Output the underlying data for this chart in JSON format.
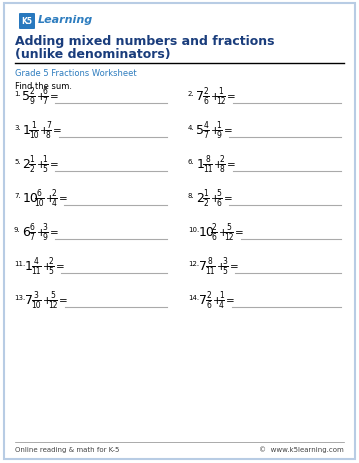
{
  "title_line1": "Adding mixed numbers and fractions",
  "title_line2": "(unlike denominators)",
  "subtitle": "Grade 5 Fractions Worksheet",
  "instruction": "Find the sum.",
  "title_color": "#1a3d7c",
  "subtitle_color": "#2e7dbf",
  "border_color": "#b8cce4",
  "background": "#ffffff",
  "footer_left": "Online reading & math for K-5",
  "footer_right": "©  www.k5learning.com",
  "problems": [
    {
      "num": "1.",
      "whole": "5",
      "n1": "2",
      "d1": "9",
      "n2": "6",
      "d2": "7"
    },
    {
      "num": "2.",
      "whole": "7",
      "n1": "2",
      "d1": "6",
      "n2": "1",
      "d2": "12"
    },
    {
      "num": "3.",
      "whole": "1",
      "n1": "1",
      "d1": "10",
      "n2": "7",
      "d2": "8"
    },
    {
      "num": "4.",
      "whole": "5",
      "n1": "4",
      "d1": "7",
      "n2": "1",
      "d2": "9"
    },
    {
      "num": "5.",
      "whole": "2",
      "n1": "1",
      "d1": "2",
      "n2": "1",
      "d2": "5"
    },
    {
      "num": "6.",
      "whole": "1",
      "n1": "8",
      "d1": "11",
      "n2": "2",
      "d2": "8"
    },
    {
      "num": "7.",
      "whole": "10",
      "n1": "6",
      "d1": "10",
      "n2": "2",
      "d2": "4"
    },
    {
      "num": "8.",
      "whole": "2",
      "n1": "1",
      "d1": "2",
      "n2": "5",
      "d2": "6"
    },
    {
      "num": "9.",
      "whole": "6",
      "n1": "6",
      "d1": "7",
      "n2": "3",
      "d2": "9"
    },
    {
      "num": "10.",
      "whole": "10",
      "n1": "2",
      "d1": "6",
      "n2": "5",
      "d2": "12"
    },
    {
      "num": "11.",
      "whole": "1",
      "n1": "4",
      "d1": "11",
      "n2": "2",
      "d2": "5"
    },
    {
      "num": "12.",
      "whole": "7",
      "n1": "8",
      "d1": "11",
      "n2": "3",
      "d2": "5"
    },
    {
      "num": "13.",
      "whole": "7",
      "n1": "3",
      "d1": "10",
      "n2": "5",
      "d2": "12"
    },
    {
      "num": "14.",
      "whole": "7",
      "n1": "2",
      "d1": "6",
      "n2": "1",
      "d2": "4"
    }
  ]
}
